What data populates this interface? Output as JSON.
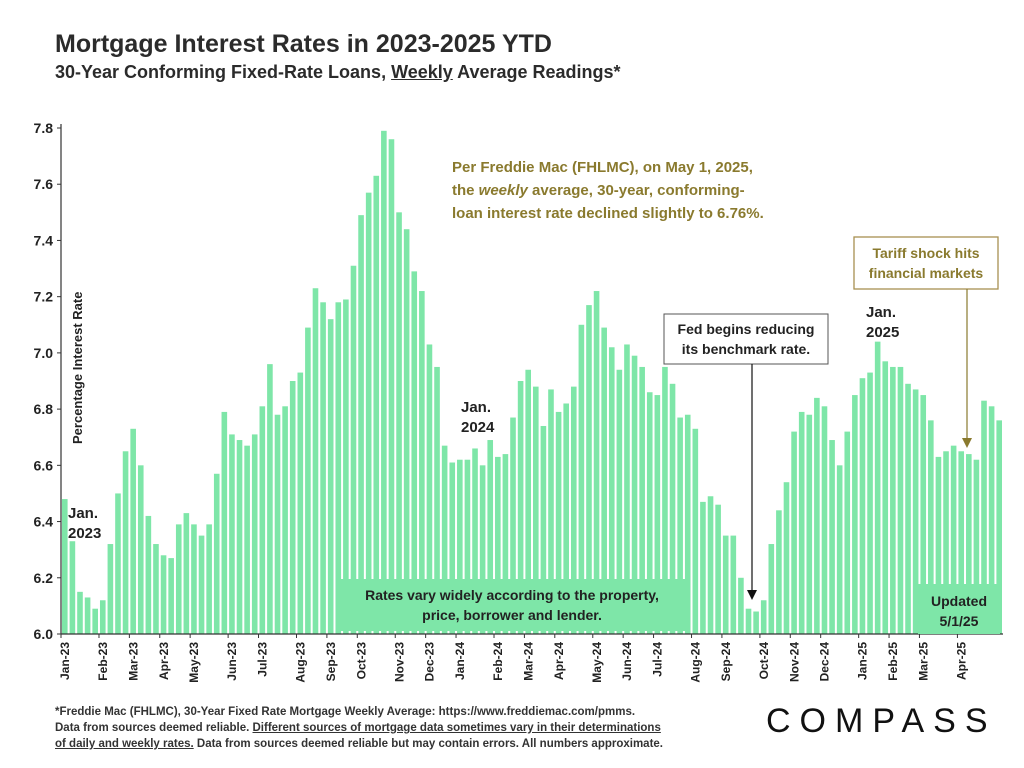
{
  "header": {
    "title": "Mortgage Interest Rates in 2023-2025 YTD",
    "subtitle_pre": "30-Year Conforming Fixed-Rate Loans, ",
    "subtitle_underlined": "Weekly",
    "subtitle_post": " Average Readings*"
  },
  "footer": {
    "line1": "*Freddie Mac (FHLMC), 30-Year Fixed Rate Mortgage Weekly Average:  https://www.freddiemac.com/pmms.",
    "line2a": "Data from sources deemed reliable. ",
    "line2b": "Different sources of mortgage data sometimes vary in their determinations",
    "line3a": "of daily and weekly rates.",
    "line3b": " Data from sources deemed reliable but may contain errors. All numbers approximate."
  },
  "logo": {
    "text": "COMPASS"
  },
  "colors": {
    "bar": "#7ee6a8",
    "annotation_gold": "#8a7a2e",
    "box_border": "#a89050",
    "axis": "#333333"
  },
  "chart_data": {
    "type": "bar",
    "ylabel": "Percentage Interest Rate",
    "ylim": [
      6.0,
      7.8
    ],
    "yticks": [
      "6.0",
      "6.2",
      "6.4",
      "6.6",
      "6.8",
      "7.0",
      "7.2",
      "7.4",
      "7.6",
      "7.8"
    ],
    "month_labels": [
      "Jan-23",
      "Feb-23",
      "Mar-23",
      "Apr-23",
      "May-23",
      "Jun-23",
      "Jul-23",
      "Aug-23",
      "Sep-23",
      "Oct-23",
      "Nov-23",
      "Dec-23",
      "Jan-24",
      "Feb-24",
      "Mar-24",
      "Apr-24",
      "May-24",
      "Jun-24",
      "Jul-24",
      "Aug-24",
      "Sep-24",
      "Oct-24",
      "Nov-24",
      "Dec-24",
      "Jan-25",
      "Feb-25",
      "Mar-25",
      "Apr-25"
    ],
    "month_start_index": [
      0,
      5,
      9,
      13,
      17,
      22,
      26,
      31,
      35,
      39,
      44,
      48,
      52,
      57,
      61,
      65,
      70,
      74,
      78,
      83,
      87,
      92,
      96,
      100,
      105,
      109,
      113,
      118
    ],
    "values": [
      6.48,
      6.33,
      6.15,
      6.13,
      6.09,
      6.12,
      6.32,
      6.5,
      6.65,
      6.73,
      6.6,
      6.42,
      6.32,
      6.28,
      6.27,
      6.39,
      6.43,
      6.39,
      6.35,
      6.39,
      6.57,
      6.79,
      6.71,
      6.69,
      6.67,
      6.71,
      6.81,
      6.96,
      6.78,
      6.81,
      6.9,
      6.93,
      7.09,
      7.23,
      7.18,
      7.12,
      7.18,
      7.19,
      7.31,
      7.49,
      7.57,
      7.63,
      7.79,
      7.76,
      7.5,
      7.44,
      7.29,
      7.22,
      7.03,
      6.95,
      6.67,
      6.61,
      6.62,
      6.62,
      6.66,
      6.6,
      6.69,
      6.63,
      6.64,
      6.77,
      6.9,
      6.94,
      6.88,
      6.74,
      6.87,
      6.79,
      6.82,
      6.88,
      7.1,
      7.17,
      7.22,
      7.09,
      7.02,
      6.94,
      7.03,
      6.99,
      6.95,
      6.86,
      6.85,
      6.95,
      6.89,
      6.77,
      6.78,
      6.73,
      6.47,
      6.49,
      6.46,
      6.35,
      6.35,
      6.2,
      6.09,
      6.08,
      6.12,
      6.32,
      6.44,
      6.54,
      6.72,
      6.79,
      6.78,
      6.84,
      6.81,
      6.69,
      6.6,
      6.72,
      6.85,
      6.91,
      6.93,
      7.04,
      6.97,
      6.95,
      6.95,
      6.89,
      6.87,
      6.85,
      6.76,
      6.63,
      6.65,
      6.67,
      6.65,
      6.64,
      6.62,
      6.83,
      6.81,
      6.76
    ],
    "annotations": {
      "jan2023": "Jan.\n2023",
      "jan2024": "Jan.\n2024",
      "jan2025": "Jan.\n2025",
      "freddie": [
        "Per Freddie Mac (FHLMC), on May 1, 2025,",
        "the weekly average, 30-year, conforming-",
        "loan interest rate declined slightly to 6.76%."
      ],
      "fed": "Fed begins reducing\nits benchmark rate.",
      "tariff": "Tariff shock hits\nfinancial markets",
      "vary": "Rates vary widely according to the property,\nprice, borrower and lender.",
      "updated": "Updated\n5/1/25"
    }
  }
}
